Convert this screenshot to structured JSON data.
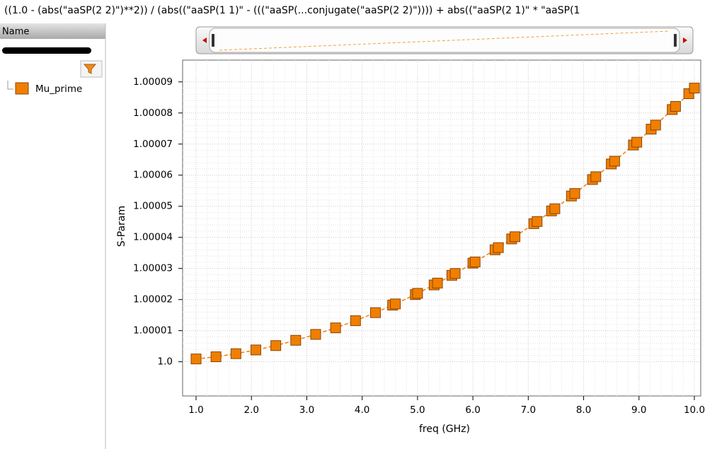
{
  "header": {
    "expression": "((1.0 - (abs(\"aaSP(2 2)\")**2)) / (abs((\"aaSP(1 1)\" - (((\"aaSP(...conjugate(\"aaSP(2 2)\")))) + abs((\"aaSP(2 1)\" * \"aaSP(1"
  },
  "browser": {
    "column": "Name"
  },
  "chart_data": {
    "type": "line",
    "xlabel": "freq (GHz)",
    "ylabel": "S-Param",
    "x": [
      1.0,
      1.36,
      1.72,
      2.08,
      2.44,
      2.8,
      3.16,
      3.52,
      3.88,
      4.24,
      4.55,
      4.6,
      4.96,
      5.0,
      5.3,
      5.36,
      5.62,
      5.68,
      6.0,
      6.04,
      6.4,
      6.46,
      6.7,
      6.76,
      7.1,
      7.16,
      7.42,
      7.48,
      7.78,
      7.84,
      8.16,
      8.22,
      8.5,
      8.56,
      8.9,
      8.96,
      9.22,
      9.3,
      9.6,
      9.66,
      9.9,
      10.0
    ],
    "series": [
      {
        "name": "Mu_prime",
        "color": "#f07f00",
        "values": [
          1.0000009,
          1.0000016,
          1.0000026,
          1.0000038,
          1.0000052,
          1.0000069,
          1.0000088,
          1.0000109,
          1.0000132,
          1.0000158,
          1.0000182,
          1.0000186,
          1.0000216,
          1.000022,
          1.0000247,
          1.0000253,
          1.0000278,
          1.0000284,
          1.0000317,
          1.0000321,
          1.000036,
          1.0000367,
          1.0000395,
          1.0000402,
          1.0000444,
          1.0000451,
          1.0000485,
          1.0000492,
          1.0000533,
          1.0000541,
          1.0000586,
          1.0000595,
          1.0000636,
          1.0000645,
          1.0000697,
          1.0000706,
          1.0000748,
          1.0000761,
          1.0000811,
          1.0000821,
          1.0000862,
          1.000088
        ]
      }
    ],
    "xlim": [
      0.757,
      10.115
    ],
    "ylim": [
      0.999989,
      1.000097
    ],
    "xticks": [
      {
        "value": 1,
        "label": "1.0"
      },
      {
        "value": 2,
        "label": "2.0"
      },
      {
        "value": 3,
        "label": "3.0"
      },
      {
        "value": 4,
        "label": "4.0"
      },
      {
        "value": 5,
        "label": "5.0"
      },
      {
        "value": 6,
        "label": "6.0"
      },
      {
        "value": 7,
        "label": "7.0"
      },
      {
        "value": 8,
        "label": "8.0"
      },
      {
        "value": 9,
        "label": "9.0"
      },
      {
        "value": 10,
        "label": "10.0"
      }
    ],
    "yticks": [
      {
        "value": 1,
        "label": "1.0"
      },
      1.00001,
      1.00002,
      1.00003,
      1.00004,
      1.00005,
      1.00006,
      1.00007,
      1.00008,
      1.00009
    ],
    "grid": true,
    "marker": "square",
    "line_style": "dashed"
  }
}
